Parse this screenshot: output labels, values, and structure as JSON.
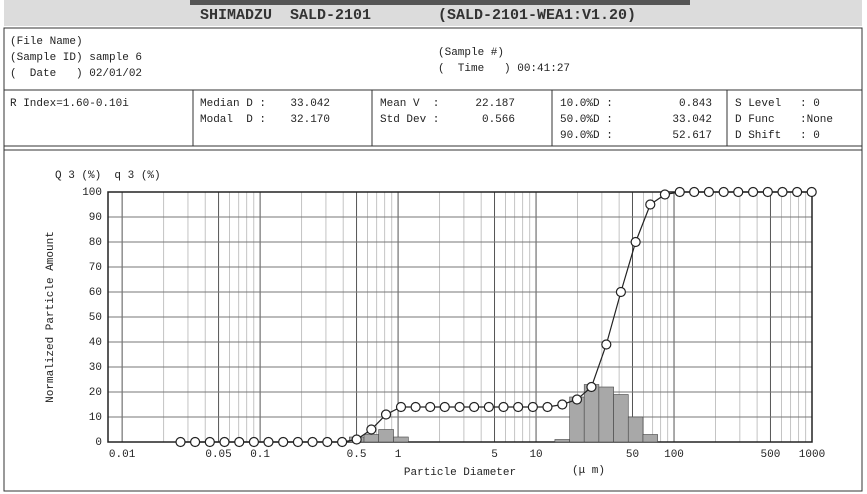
{
  "header": {
    "title": "SHIMADZU  SALD-2101",
    "version": "(SALD-2101-WEA1:V1.20)"
  },
  "sample": {
    "file_name": "(File Name)",
    "sample_id": "(Sample ID) sample 6",
    "date": "(  Date   ) 02/01/02",
    "sample_no": "(Sample #)",
    "time": "(  Time   ) 00:41:27"
  },
  "stats": {
    "r_index": "R Index=1.60-0.10i",
    "columns": [
      [
        [
          "Median D :",
          "33.042"
        ],
        [
          "Modal  D :",
          "32.170"
        ]
      ],
      [
        [
          "Mean V  :",
          "22.187"
        ],
        [
          "Std Dev :",
          "0.566"
        ]
      ],
      [
        [
          "10.0%D :",
          "0.843"
        ],
        [
          "50.0%D :",
          "33.042"
        ],
        [
          "90.0%D :",
          "52.617"
        ]
      ],
      [
        [
          "S Level",
          ": 0"
        ],
        [
          "D Func",
          ":None"
        ],
        [
          "D Shift",
          ": 0"
        ]
      ]
    ]
  },
  "chart_data": {
    "type": "line",
    "axis_header": "Q 3 (%)  q 3 (%)",
    "y_label": "Normalized Particle Amount",
    "x_label": "Particle Diameter",
    "x_unit": "(μ m)",
    "xscale": "log",
    "xlim": [
      0.0079,
      1000
    ],
    "ylim": [
      0,
      100
    ],
    "xticks": [
      0.01,
      0.05,
      0.1,
      0.5,
      1,
      5,
      10,
      50,
      100,
      500,
      1000
    ],
    "xgrid": [
      0.02,
      0.03,
      0.04,
      0.06,
      0.07,
      0.08,
      0.09,
      0.2,
      0.3,
      0.4,
      0.6,
      0.7,
      0.8,
      0.9,
      2,
      3,
      4,
      6,
      7,
      8,
      9,
      20,
      30,
      40,
      60,
      70,
      80,
      90,
      200,
      300,
      400,
      600,
      700,
      800,
      900
    ],
    "yticks": [
      0,
      10,
      20,
      30,
      40,
      50,
      60,
      70,
      80,
      90,
      100
    ],
    "grid": true,
    "x": [
      0.0265,
      0.0338,
      0.0432,
      0.0552,
      0.0706,
      0.0902,
      0.115,
      0.147,
      0.188,
      0.24,
      0.307,
      0.393,
      0.501,
      0.64,
      0.818,
      1.05,
      1.34,
      1.71,
      2.18,
      2.79,
      3.56,
      4.55,
      5.81,
      7.42,
      9.48,
      12.1,
      15.5,
      19.8,
      25.2,
      32.3,
      41.2,
      52.7,
      67.3,
      85.9,
      110,
      140,
      179,
      229,
      292,
      374,
      478,
      611,
      780,
      995
    ],
    "series": [
      {
        "type": "bar",
        "color": "#a8a8a8",
        "values": [
          0,
          0,
          0,
          0,
          0,
          0,
          0,
          0,
          0,
          0,
          0,
          0,
          2,
          3,
          5,
          2,
          0,
          0,
          0,
          0,
          0,
          0,
          0,
          0,
          0,
          0,
          1,
          18,
          23,
          22,
          19,
          10,
          3,
          0,
          0,
          0,
          0,
          0,
          0,
          0,
          0,
          0,
          0,
          0
        ]
      },
      {
        "type": "line",
        "color": "#222222",
        "values": [
          0,
          0,
          0,
          0,
          0,
          0,
          0,
          0,
          0,
          0,
          0,
          0,
          1,
          5,
          11,
          14,
          14,
          14,
          14,
          14,
          14,
          14,
          14,
          14,
          14,
          14,
          15,
          17,
          22,
          39,
          60,
          80,
          95,
          99,
          100,
          100,
          100,
          100,
          100,
          100,
          100,
          100,
          100,
          100
        ]
      }
    ]
  }
}
